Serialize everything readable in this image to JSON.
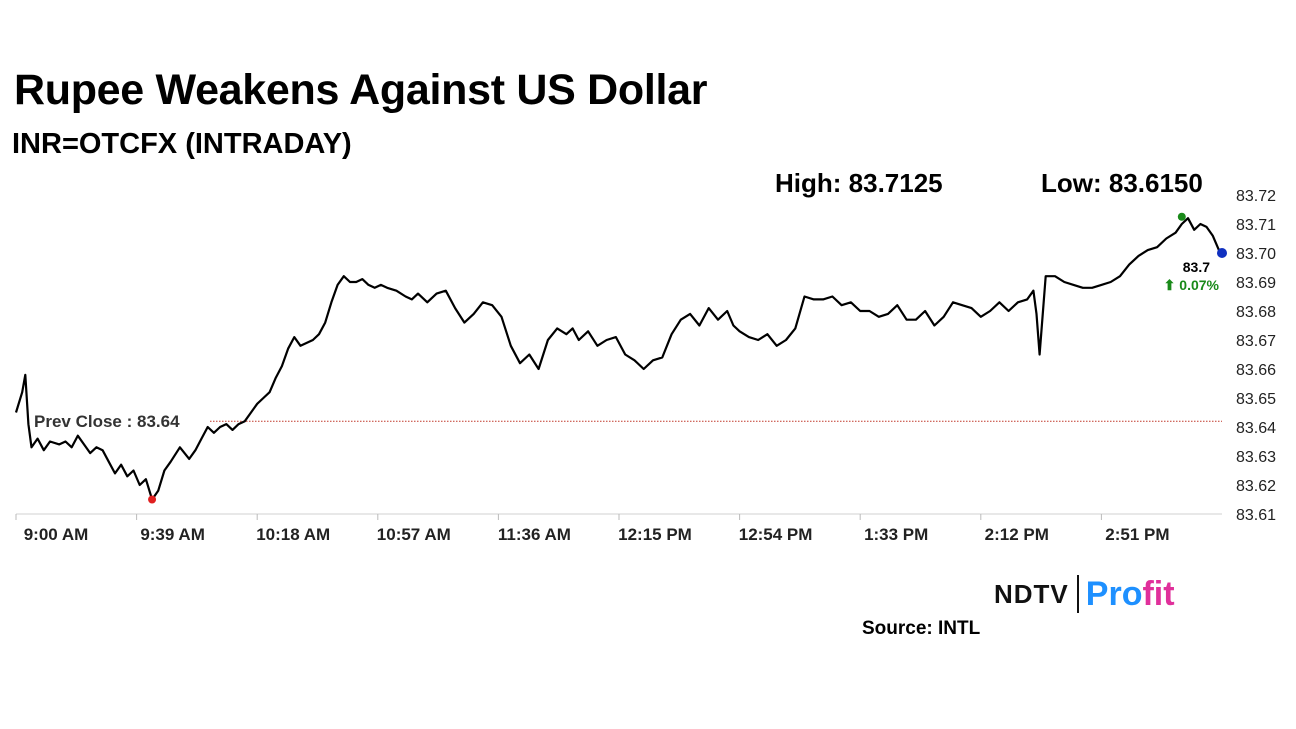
{
  "header": {
    "title": "Rupee Weakens Against US Dollar",
    "subtitle": "INR=OTCFX (INTRADAY)",
    "high_label": "High: 83.7125",
    "low_label": "Low: 83.6150"
  },
  "footer": {
    "brand_left": "NDTV",
    "brand_right_a": "Pro",
    "brand_right_b": "fit",
    "source": "Source: INTL"
  },
  "colors": {
    "line": "#000000",
    "prev_close_line": "#c0392b",
    "low_marker": "#e02020",
    "high_marker": "#1a8a1a",
    "last_marker": "#1030c0",
    "change_text": "#1a8a1a",
    "brand_blue": "#1e90ff",
    "brand_pink": "#e0309b"
  },
  "chart_data": {
    "type": "line",
    "title": "Rupee Weakens Against US Dollar",
    "subtitle": "INR=OTCFX (INTRADAY)",
    "xlabel": "",
    "ylabel": "",
    "x_ticks": [
      "9:00 AM",
      "9:39 AM",
      "10:18 AM",
      "10:57 AM",
      "11:36 AM",
      "12:15 PM",
      "12:54 PM",
      "1:33 PM",
      "2:12 PM",
      "2:51 PM"
    ],
    "y_ticks": [
      "83.61",
      "83.62",
      "83.63",
      "83.64",
      "83.65",
      "83.66",
      "83.67",
      "83.68",
      "83.69",
      "83.70",
      "83.71",
      "83.72"
    ],
    "ylim": [
      83.61,
      83.72
    ],
    "x_unit": "minutes after 9:00 AM",
    "xlim": [
      0,
      390
    ],
    "grid": false,
    "prev_close": {
      "label": "Prev Close : 83.64",
      "value": 83.642
    },
    "high": {
      "value": 83.7125,
      "x": 377
    },
    "low": {
      "value": 83.615,
      "x": 44
    },
    "last": {
      "value": 83.7,
      "label": "83.7",
      "change": "⬆ 0.07%",
      "x": 390
    },
    "series": [
      {
        "x": [
          0,
          2,
          3,
          4,
          5,
          7,
          9,
          11,
          14,
          16,
          18,
          20,
          22,
          24,
          26,
          28,
          30,
          32,
          34,
          36,
          38,
          40,
          42,
          44,
          46,
          48,
          50,
          53,
          56,
          58,
          60,
          62,
          64,
          66,
          68,
          70,
          72,
          74,
          76,
          78,
          80,
          82,
          84,
          86,
          88,
          90,
          92,
          94,
          96,
          98,
          100,
          102,
          104,
          106,
          108,
          110,
          112,
          114,
          116,
          118,
          120,
          123,
          126,
          128,
          130,
          133,
          136,
          139,
          142,
          145,
          148,
          151,
          154,
          157,
          160,
          163,
          166,
          169,
          172,
          175,
          178,
          180,
          182,
          185,
          188,
          191,
          194,
          197,
          200,
          203,
          206,
          209,
          212,
          215,
          218,
          221,
          224,
          227,
          230,
          232,
          234,
          237,
          240,
          243,
          246,
          249,
          252,
          255,
          258,
          261,
          264,
          267,
          270,
          273,
          276,
          279,
          282,
          285,
          288,
          291,
          294,
          297,
          300,
          303,
          306,
          309,
          312,
          315,
          318,
          321,
          324,
          327,
          329,
          330,
          331,
          333,
          336,
          339,
          342,
          345,
          348,
          351,
          354,
          357,
          360,
          363,
          366,
          369,
          372,
          375,
          377,
          379,
          381,
          383,
          385,
          387,
          389,
          390
        ],
        "values": [
          83.645,
          83.652,
          83.658,
          83.641,
          83.633,
          83.636,
          83.632,
          83.635,
          83.634,
          83.635,
          83.633,
          83.637,
          83.634,
          83.631,
          83.633,
          83.632,
          83.628,
          83.624,
          83.627,
          83.623,
          83.625,
          83.62,
          83.622,
          83.615,
          83.618,
          83.625,
          83.628,
          83.633,
          83.629,
          83.632,
          83.636,
          83.64,
          83.638,
          83.64,
          83.641,
          83.639,
          83.641,
          83.642,
          83.645,
          83.648,
          83.65,
          83.652,
          83.657,
          83.661,
          83.667,
          83.671,
          83.668,
          83.669,
          83.67,
          83.672,
          83.676,
          83.683,
          83.689,
          83.692,
          83.69,
          83.69,
          83.691,
          83.689,
          83.688,
          83.689,
          83.688,
          83.687,
          83.685,
          83.684,
          83.686,
          83.683,
          83.686,
          83.687,
          83.681,
          83.676,
          83.679,
          83.683,
          83.682,
          83.678,
          83.668,
          83.662,
          83.665,
          83.66,
          83.67,
          83.674,
          83.672,
          83.674,
          83.67,
          83.673,
          83.668,
          83.67,
          83.671,
          83.665,
          83.663,
          83.66,
          83.663,
          83.664,
          83.672,
          83.677,
          83.679,
          83.675,
          83.681,
          83.677,
          83.68,
          83.675,
          83.673,
          83.671,
          83.67,
          83.672,
          83.668,
          83.67,
          83.674,
          83.685,
          83.684,
          83.684,
          83.685,
          83.682,
          83.683,
          83.68,
          83.68,
          83.678,
          83.679,
          83.682,
          83.677,
          83.677,
          83.68,
          83.675,
          83.678,
          83.683,
          83.682,
          83.681,
          83.678,
          83.68,
          83.683,
          83.68,
          83.683,
          83.684,
          83.687,
          83.679,
          83.665,
          83.692,
          83.692,
          83.69,
          83.689,
          83.688,
          83.688,
          83.689,
          83.69,
          83.692,
          83.696,
          83.699,
          83.701,
          83.702,
          83.705,
          83.707,
          83.71,
          83.712,
          83.708,
          83.71,
          83.709,
          83.706,
          83.701,
          83.7
        ]
      }
    ]
  }
}
